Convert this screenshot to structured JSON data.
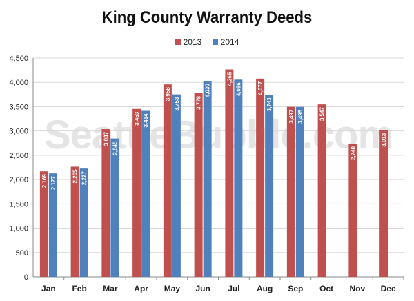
{
  "chart_data": {
    "type": "bar",
    "title": "King County Warranty Deeds",
    "categories": [
      "Jan",
      "Feb",
      "Mar",
      "Apr",
      "May",
      "Jun",
      "Jul",
      "Aug",
      "Sep",
      "Oct",
      "Nov",
      "Dec"
    ],
    "series": [
      {
        "name": "2013",
        "color": "#c0504d",
        "values": [
          2169,
          2265,
          3037,
          3453,
          3958,
          3778,
          4265,
          4077,
          3497,
          3547,
          2740,
          3013
        ],
        "labels": [
          "2,169",
          "2,265",
          "3,037",
          "3,453",
          "3,958",
          "3,778",
          "4,265",
          "4,077",
          "3,497",
          "3,547",
          "2,740",
          "3,013"
        ]
      },
      {
        "name": "2014",
        "color": "#4f81bd",
        "values": [
          2127,
          2227,
          2845,
          3414,
          3753,
          4030,
          4056,
          3743,
          3495,
          null,
          null,
          null
        ],
        "labels": [
          "2,127",
          "2,227",
          "2,845",
          "3,414",
          "3,753",
          "4,030",
          "4,056",
          "3,743",
          "3,495",
          "",
          "",
          ""
        ]
      }
    ],
    "ylim": [
      0,
      4500
    ],
    "yticks": [
      0,
      500,
      1000,
      1500,
      2000,
      2500,
      3000,
      3500,
      4000,
      4500
    ],
    "ytick_labels": [
      "0",
      "500",
      "1,000",
      "1,500",
      "2,000",
      "2,500",
      "3,000",
      "3,500",
      "4,000",
      "4,500"
    ],
    "xlabel": "",
    "ylabel": "",
    "grid": true,
    "legend": "top-center",
    "watermark": "SeattleBubble.com"
  }
}
